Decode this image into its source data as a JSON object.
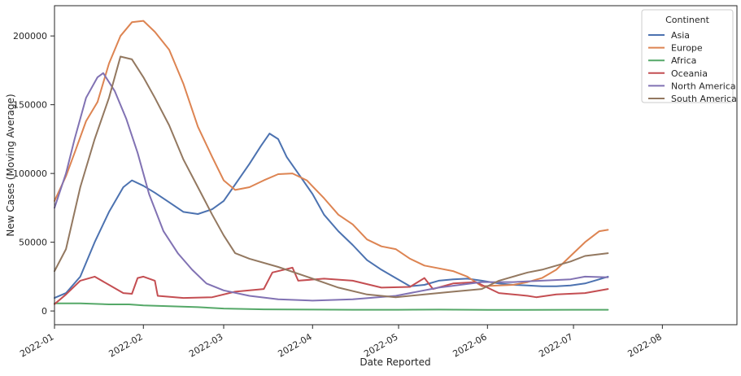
{
  "chart_data": {
    "type": "line",
    "title": "",
    "xlabel": "Date Reported",
    "ylabel": "New Cases (Moving Average)",
    "x_ticks": [
      "2022-01",
      "2022-02",
      "2022-03",
      "2022-04",
      "2022-05",
      "2022-06",
      "2022-07",
      "2022-08"
    ],
    "y_ticks": [
      "0",
      "50000",
      "100000",
      "150000",
      "200000"
    ],
    "xlim": [
      "2022-01-01",
      "2022-08-27"
    ],
    "ylim": [
      -10000,
      222000
    ],
    "grid": false,
    "legend": {
      "title": "Continent",
      "position": "top-right"
    },
    "series": [
      {
        "name": "Asia",
        "color": "#4c72b0",
        "points": [
          [
            "2022-01-01",
            9500
          ],
          [
            "2022-01-05",
            13000
          ],
          [
            "2022-01-10",
            25000
          ],
          [
            "2022-01-15",
            50000
          ],
          [
            "2022-01-20",
            72000
          ],
          [
            "2022-01-25",
            90000
          ],
          [
            "2022-01-28",
            95000
          ],
          [
            "2022-02-01",
            91000
          ],
          [
            "2022-02-05",
            86000
          ],
          [
            "2022-02-10",
            79000
          ],
          [
            "2022-02-15",
            72000
          ],
          [
            "2022-02-20",
            70500
          ],
          [
            "2022-02-25",
            74000
          ],
          [
            "2022-03-01",
            80000
          ],
          [
            "2022-03-05",
            92000
          ],
          [
            "2022-03-10",
            107000
          ],
          [
            "2022-03-14",
            120000
          ],
          [
            "2022-03-17",
            129000
          ],
          [
            "2022-03-20",
            125000
          ],
          [
            "2022-03-23",
            112000
          ],
          [
            "2022-03-28",
            97000
          ],
          [
            "2022-04-01",
            85000
          ],
          [
            "2022-04-05",
            70000
          ],
          [
            "2022-04-10",
            58000
          ],
          [
            "2022-04-15",
            48000
          ],
          [
            "2022-04-20",
            37000
          ],
          [
            "2022-04-25",
            30000
          ],
          [
            "2022-04-30",
            24000
          ],
          [
            "2022-05-05",
            18000
          ],
          [
            "2022-05-10",
            19000
          ],
          [
            "2022-05-15",
            22000
          ],
          [
            "2022-05-20",
            23000
          ],
          [
            "2022-05-25",
            23500
          ],
          [
            "2022-05-30",
            22000
          ],
          [
            "2022-06-05",
            20000
          ],
          [
            "2022-06-10",
            19000
          ],
          [
            "2022-06-15",
            18500
          ],
          [
            "2022-06-20",
            18000
          ],
          [
            "2022-06-25",
            18000
          ],
          [
            "2022-06-30",
            18500
          ],
          [
            "2022-07-05",
            20000
          ],
          [
            "2022-07-10",
            23000
          ],
          [
            "2022-07-13",
            25000
          ]
        ]
      },
      {
        "name": "Europe",
        "color": "#dd8452",
        "points": [
          [
            "2022-01-01",
            80000
          ],
          [
            "2022-01-05",
            98000
          ],
          [
            "2022-01-08",
            115000
          ],
          [
            "2022-01-12",
            138000
          ],
          [
            "2022-01-16",
            152000
          ],
          [
            "2022-01-20",
            180000
          ],
          [
            "2022-01-24",
            200000
          ],
          [
            "2022-01-28",
            210000
          ],
          [
            "2022-02-01",
            211000
          ],
          [
            "2022-02-05",
            203000
          ],
          [
            "2022-02-10",
            190000
          ],
          [
            "2022-02-15",
            165000
          ],
          [
            "2022-02-20",
            134000
          ],
          [
            "2022-02-25",
            112000
          ],
          [
            "2022-03-01",
            95000
          ],
          [
            "2022-03-05",
            88000
          ],
          [
            "2022-03-10",
            90000
          ],
          [
            "2022-03-15",
            95000
          ],
          [
            "2022-03-20",
            99500
          ],
          [
            "2022-03-25",
            100000
          ],
          [
            "2022-03-30",
            95000
          ],
          [
            "2022-04-05",
            82000
          ],
          [
            "2022-04-10",
            70000
          ],
          [
            "2022-04-15",
            63000
          ],
          [
            "2022-04-20",
            52000
          ],
          [
            "2022-04-25",
            47000
          ],
          [
            "2022-04-30",
            45000
          ],
          [
            "2022-05-05",
            38000
          ],
          [
            "2022-05-10",
            33000
          ],
          [
            "2022-05-15",
            31000
          ],
          [
            "2022-05-20",
            29000
          ],
          [
            "2022-05-25",
            25000
          ],
          [
            "2022-05-30",
            18000
          ],
          [
            "2022-06-05",
            18500
          ],
          [
            "2022-06-10",
            19000
          ],
          [
            "2022-06-15",
            21000
          ],
          [
            "2022-06-20",
            24000
          ],
          [
            "2022-06-25",
            30000
          ],
          [
            "2022-06-30",
            40000
          ],
          [
            "2022-07-05",
            50000
          ],
          [
            "2022-07-10",
            58000
          ],
          [
            "2022-07-13",
            59000
          ]
        ]
      },
      {
        "name": "Africa",
        "color": "#55a868",
        "points": [
          [
            "2022-01-01",
            5500
          ],
          [
            "2022-01-10",
            5500
          ],
          [
            "2022-01-20",
            4800
          ],
          [
            "2022-01-27",
            4800
          ],
          [
            "2022-02-01",
            4000
          ],
          [
            "2022-02-10",
            3500
          ],
          [
            "2022-02-20",
            2800
          ],
          [
            "2022-03-01",
            1800
          ],
          [
            "2022-03-15",
            1200
          ],
          [
            "2022-04-01",
            1000
          ],
          [
            "2022-04-15",
            900
          ],
          [
            "2022-05-01",
            900
          ],
          [
            "2022-05-15",
            1000
          ],
          [
            "2022-06-01",
            800
          ],
          [
            "2022-06-15",
            800
          ],
          [
            "2022-07-01",
            900
          ],
          [
            "2022-07-13",
            900
          ]
        ]
      },
      {
        "name": "Oceania",
        "color": "#c44e52",
        "points": [
          [
            "2022-01-01",
            5000
          ],
          [
            "2022-01-05",
            12000
          ],
          [
            "2022-01-10",
            22000
          ],
          [
            "2022-01-15",
            25000
          ],
          [
            "2022-01-20",
            19000
          ],
          [
            "2022-01-25",
            13000
          ],
          [
            "2022-01-28",
            12500
          ],
          [
            "2022-01-30",
            24000
          ],
          [
            "2022-02-01",
            25000
          ],
          [
            "2022-02-05",
            22000
          ],
          [
            "2022-02-06",
            11000
          ],
          [
            "2022-02-15",
            9500
          ],
          [
            "2022-02-25",
            10000
          ],
          [
            "2022-03-05",
            14000
          ],
          [
            "2022-03-15",
            16000
          ],
          [
            "2022-03-18",
            28000
          ],
          [
            "2022-03-25",
            31500
          ],
          [
            "2022-03-27",
            22000
          ],
          [
            "2022-04-05",
            23500
          ],
          [
            "2022-04-15",
            22000
          ],
          [
            "2022-04-25",
            17000
          ],
          [
            "2022-05-05",
            17500
          ],
          [
            "2022-05-10",
            24000
          ],
          [
            "2022-05-13",
            16000
          ],
          [
            "2022-05-20",
            20000
          ],
          [
            "2022-05-28",
            21000
          ],
          [
            "2022-06-05",
            13000
          ],
          [
            "2022-06-15",
            11000
          ],
          [
            "2022-06-18",
            10000
          ],
          [
            "2022-06-25",
            12000
          ],
          [
            "2022-07-05",
            13000
          ],
          [
            "2022-07-13",
            16000
          ]
        ]
      },
      {
        "name": "North America",
        "color": "#8172b3",
        "points": [
          [
            "2022-01-01",
            75000
          ],
          [
            "2022-01-05",
            100000
          ],
          [
            "2022-01-08",
            125000
          ],
          [
            "2022-01-12",
            155000
          ],
          [
            "2022-01-16",
            170000
          ],
          [
            "2022-01-18",
            173000
          ],
          [
            "2022-01-22",
            160000
          ],
          [
            "2022-01-26",
            140000
          ],
          [
            "2022-01-30",
            115000
          ],
          [
            "2022-02-03",
            85000
          ],
          [
            "2022-02-08",
            58000
          ],
          [
            "2022-02-13",
            42000
          ],
          [
            "2022-02-18",
            30000
          ],
          [
            "2022-02-23",
            20000
          ],
          [
            "2022-03-01",
            15000
          ],
          [
            "2022-03-10",
            11000
          ],
          [
            "2022-03-20",
            8500
          ],
          [
            "2022-04-01",
            7500
          ],
          [
            "2022-04-15",
            8500
          ],
          [
            "2022-04-30",
            11000
          ],
          [
            "2022-05-15",
            17000
          ],
          [
            "2022-05-30",
            21000
          ],
          [
            "2022-06-10",
            21000
          ],
          [
            "2022-06-20",
            22000
          ],
          [
            "2022-06-30",
            23000
          ],
          [
            "2022-07-05",
            25000
          ],
          [
            "2022-07-13",
            24500
          ]
        ]
      },
      {
        "name": "South America",
        "color": "#937860",
        "points": [
          [
            "2022-01-01",
            29000
          ],
          [
            "2022-01-05",
            45000
          ],
          [
            "2022-01-10",
            90000
          ],
          [
            "2022-01-15",
            125000
          ],
          [
            "2022-01-20",
            155000
          ],
          [
            "2022-01-24",
            185000
          ],
          [
            "2022-01-28",
            183000
          ],
          [
            "2022-02-01",
            170000
          ],
          [
            "2022-02-05",
            155000
          ],
          [
            "2022-02-10",
            135000
          ],
          [
            "2022-02-15",
            110000
          ],
          [
            "2022-02-20",
            90000
          ],
          [
            "2022-02-25",
            70000
          ],
          [
            "2022-03-01",
            55000
          ],
          [
            "2022-03-05",
            42000
          ],
          [
            "2022-03-10",
            38000
          ],
          [
            "2022-03-20",
            32000
          ],
          [
            "2022-03-30",
            25000
          ],
          [
            "2022-04-10",
            17000
          ],
          [
            "2022-04-20",
            12000
          ],
          [
            "2022-04-30",
            10000
          ],
          [
            "2022-05-10",
            12000
          ],
          [
            "2022-05-20",
            14000
          ],
          [
            "2022-05-30",
            16000
          ],
          [
            "2022-06-05",
            22000
          ],
          [
            "2022-06-15",
            28000
          ],
          [
            "2022-06-20",
            30000
          ],
          [
            "2022-06-30",
            36000
          ],
          [
            "2022-07-05",
            40000
          ],
          [
            "2022-07-13",
            42000
          ]
        ]
      }
    ]
  }
}
